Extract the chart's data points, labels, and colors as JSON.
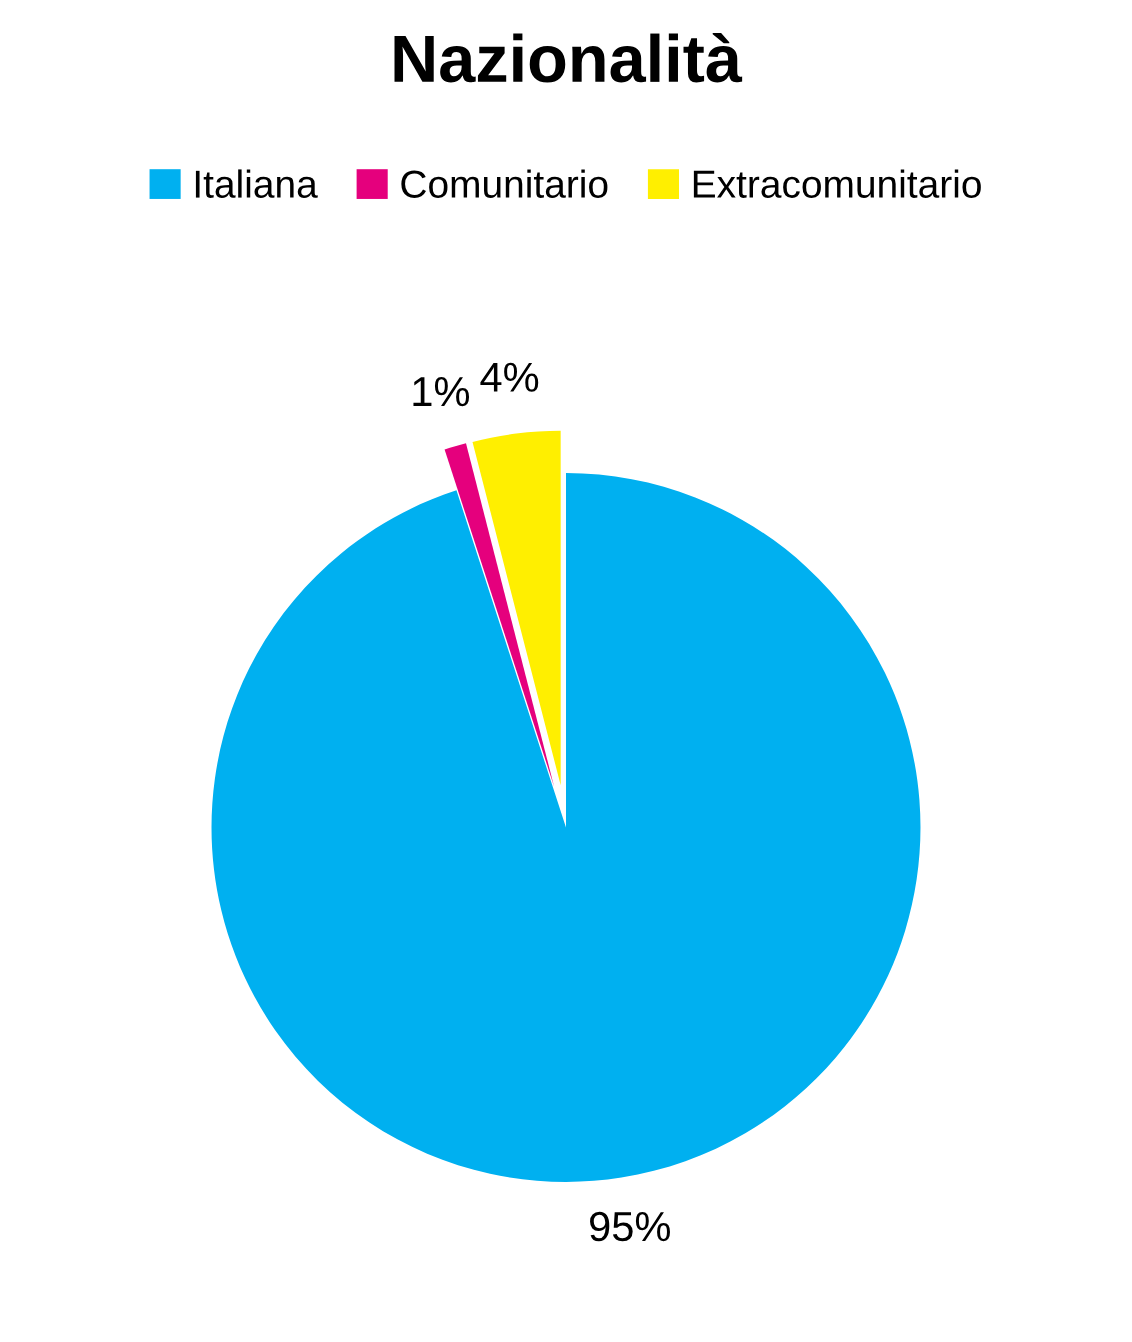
{
  "chart_data": {
    "type": "pie",
    "title": "Nazionalità",
    "categories": [
      "Italiana",
      "Comunitario",
      "Extracomunitario"
    ],
    "values": [
      95,
      1,
      4
    ],
    "value_labels": [
      "95%",
      "1%",
      "4%"
    ],
    "colors": [
      "#00b0f0",
      "#e5007d",
      "#ffef00"
    ],
    "legend": "top"
  }
}
